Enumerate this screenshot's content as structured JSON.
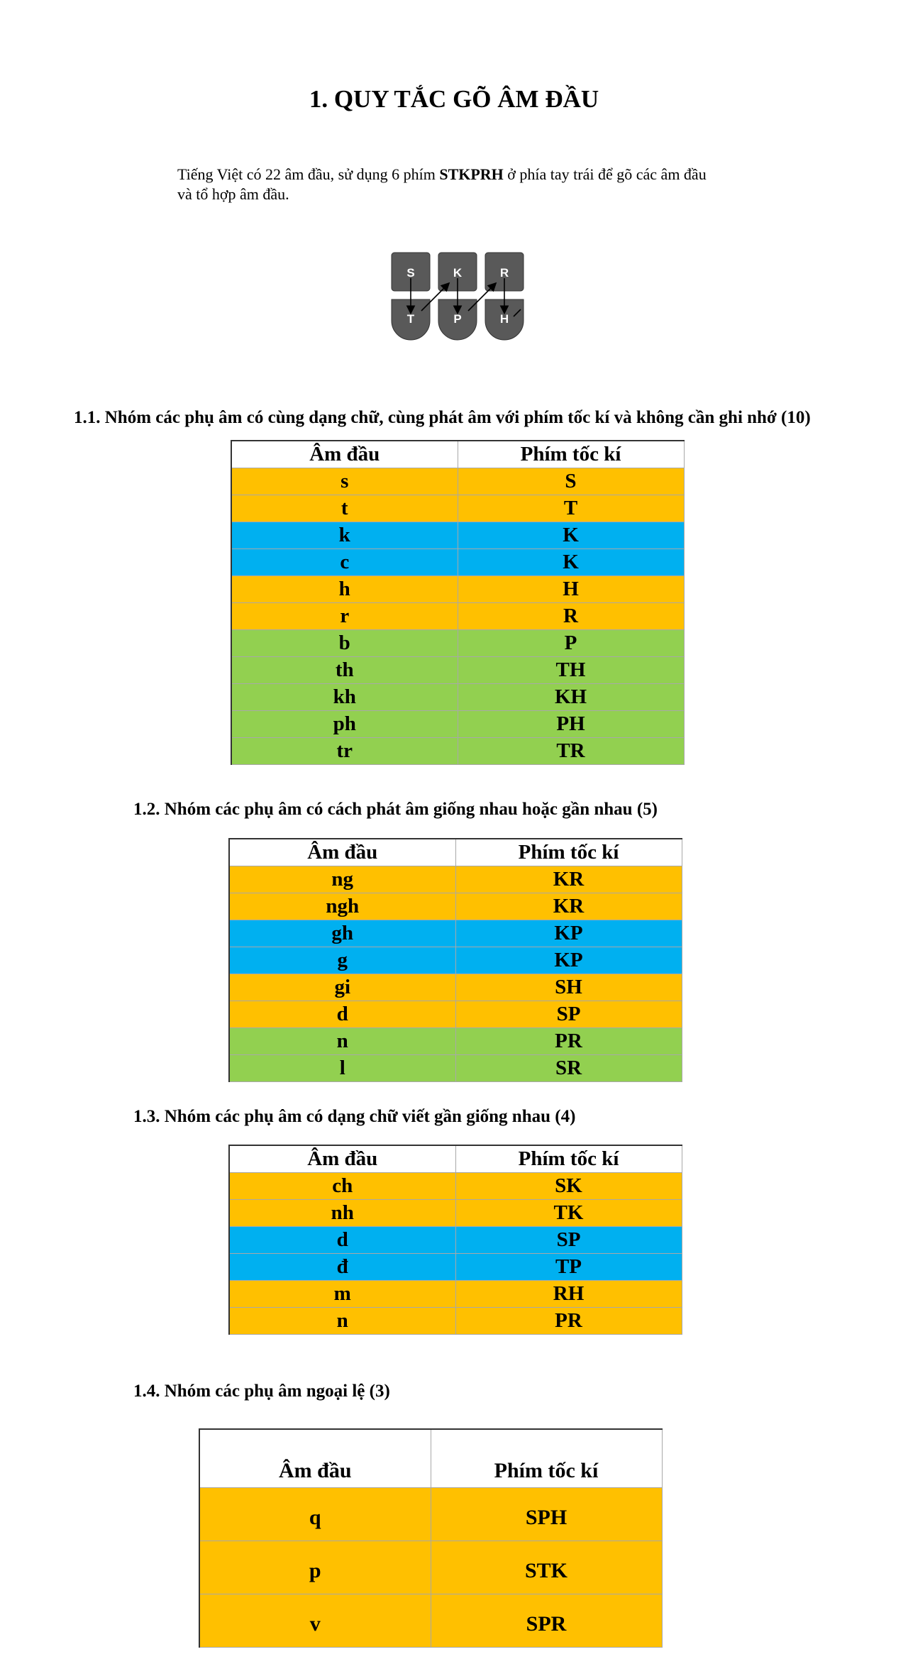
{
  "title": "1. QUY TẮC GÕ ÂM ĐẦU",
  "intro": {
    "before": "Tiếng Việt có 22 âm đầu, sử dụng 6 phím ",
    "bold": "STKPRH",
    "after": " ở phía tay trái để gõ các âm đầu và tổ hợp âm đầu."
  },
  "keyboard": {
    "top_keys": [
      "S",
      "K",
      "R"
    ],
    "bottom_keys": [
      "T",
      "P",
      "H"
    ],
    "key_color": "#595959"
  },
  "colors": {
    "yellow": "#FFC000",
    "blue": "#00B0F0",
    "green": "#92D050"
  },
  "sections": [
    {
      "heading": "1.1. Nhóm các phụ âm có cùng dạng chữ, cùng phát âm với phím tốc kí và không cần ghi nhớ (10)",
      "header": [
        "Âm đầu",
        "Phím tốc kí"
      ],
      "rows": [
        [
          "s",
          "S"
        ],
        [
          "t",
          "T"
        ],
        [
          "k",
          "K"
        ],
        [
          "c",
          "K"
        ],
        [
          "h",
          "H"
        ],
        [
          "r",
          "R"
        ],
        [
          "b",
          "P"
        ],
        [
          "th",
          "TH"
        ],
        [
          "kh",
          "KH"
        ],
        [
          "ph",
          "PH"
        ],
        [
          "tr",
          "TR"
        ]
      ]
    },
    {
      "heading": "1.2. Nhóm các phụ âm có cách phát âm giống nhau hoặc gần nhau (5)",
      "header": [
        "Âm đầu",
        "Phím tốc kí"
      ],
      "rows": [
        [
          "ng",
          "KR"
        ],
        [
          "ngh",
          "KR"
        ],
        [
          "gh",
          "KP"
        ],
        [
          "g",
          "KP"
        ],
        [
          "gi",
          "SH"
        ],
        [
          "d",
          "SP"
        ],
        [
          "n",
          "PR"
        ],
        [
          "l",
          "SR"
        ]
      ]
    },
    {
      "heading": "1.3. Nhóm các phụ âm có dạng chữ viết gần giống nhau (4)",
      "header": [
        "Âm đầu",
        "Phím tốc kí"
      ],
      "rows": [
        [
          "ch",
          "SK"
        ],
        [
          "nh",
          "TK"
        ],
        [
          "d",
          "SP"
        ],
        [
          "đ",
          "TP"
        ],
        [
          "m",
          "RH"
        ],
        [
          "n",
          "PR"
        ]
      ]
    },
    {
      "heading": "1.4. Nhóm các phụ âm ngoại lệ (3)",
      "header": [
        "Âm đầu",
        "Phím tốc kí"
      ],
      "rows": [
        [
          "q",
          "SPH"
        ],
        [
          "p",
          "STK"
        ],
        [
          "v",
          "SPR"
        ]
      ]
    }
  ]
}
